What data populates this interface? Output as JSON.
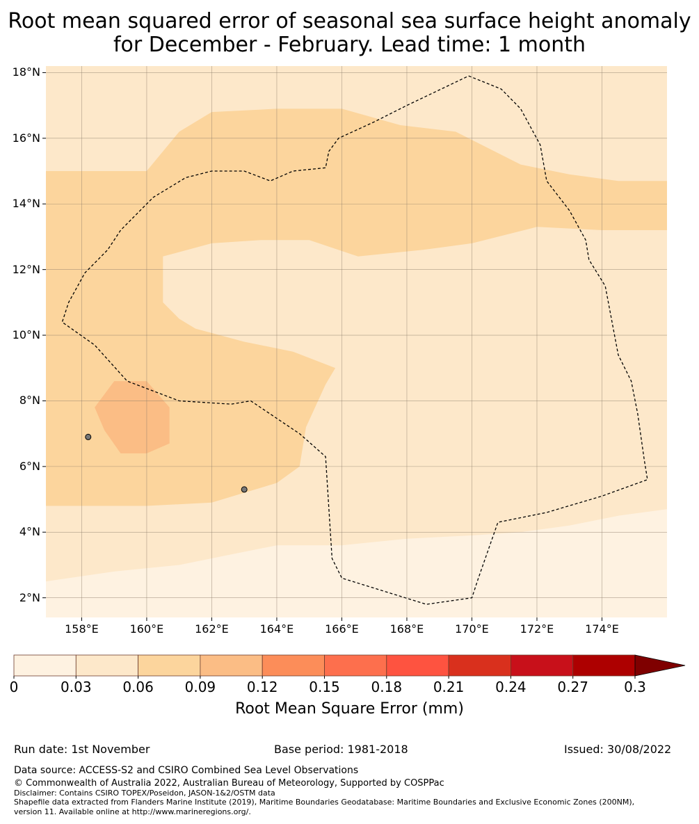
{
  "title": {
    "line1": "Root mean squared error of seasonal sea surface height anomaly",
    "line2": "for December - February. Lead time: 1 month"
  },
  "map": {
    "lat_range": [
      1.4,
      18.2
    ],
    "lon_range": [
      156.9,
      176.0
    ],
    "lat_labels": [
      "2°N",
      "4°N",
      "6°N",
      "8°N",
      "10°N",
      "12°N",
      "14°N",
      "16°N",
      "18°N"
    ],
    "lat_values": [
      2,
      4,
      6,
      8,
      10,
      12,
      14,
      16,
      18
    ],
    "lon_labels": [
      "158°E",
      "160°E",
      "162°E",
      "164°E",
      "166°E",
      "168°E",
      "170°E",
      "172°E",
      "174°E"
    ],
    "lon_values": [
      158,
      160,
      162,
      164,
      166,
      168,
      170,
      172,
      174
    ],
    "gridlines": true,
    "boundary_style": "dashed",
    "eez_boundary": [
      [
        169.9,
        17.9
      ],
      [
        170.9,
        17.5
      ],
      [
        171.5,
        16.9
      ],
      [
        172.1,
        15.8
      ],
      [
        172.3,
        14.7
      ],
      [
        173.0,
        13.8
      ],
      [
        173.5,
        12.9
      ],
      [
        173.6,
        12.3
      ],
      [
        174.1,
        11.5
      ],
      [
        174.5,
        9.4
      ],
      [
        174.9,
        8.6
      ],
      [
        175.1,
        7.6
      ],
      [
        175.3,
        6.2
      ],
      [
        175.4,
        5.6
      ],
      [
        174.0,
        5.1
      ],
      [
        172.3,
        4.6
      ],
      [
        170.8,
        4.3
      ],
      [
        170.2,
        2.6
      ],
      [
        170.0,
        2.0
      ],
      [
        168.6,
        1.8
      ],
      [
        166.0,
        2.6
      ],
      [
        165.7,
        3.2
      ],
      [
        165.5,
        6.3
      ],
      [
        164.7,
        7.0
      ],
      [
        163.2,
        8.0
      ],
      [
        162.6,
        7.9
      ],
      [
        161.0,
        8.0
      ],
      [
        159.4,
        8.6
      ],
      [
        158.4,
        9.7
      ],
      [
        157.4,
        10.4
      ],
      [
        157.6,
        11.0
      ],
      [
        158.1,
        11.9
      ],
      [
        158.8,
        12.6
      ],
      [
        159.2,
        13.2
      ],
      [
        160.2,
        14.2
      ],
      [
        161.2,
        14.8
      ],
      [
        162.0,
        15.0
      ],
      [
        163.0,
        15.0
      ],
      [
        163.8,
        14.7
      ],
      [
        164.5,
        15.0
      ],
      [
        165.5,
        15.1
      ],
      [
        165.6,
        15.6
      ],
      [
        165.9,
        16.0
      ],
      [
        167.0,
        16.5
      ],
      [
        168.0,
        17.0
      ],
      [
        169.9,
        17.9
      ]
    ],
    "fields": [
      {
        "level": "0.03-0.06",
        "color": "#fde8ca",
        "shape": [
          [
            156.9,
            18.2
          ],
          [
            176.0,
            18.2
          ],
          [
            176.0,
            1.4
          ],
          [
            156.9,
            1.4
          ]
        ]
      },
      {
        "level": "0.06-0.09",
        "color": "#fcd59d",
        "shape": [
          [
            156.9,
            15.0
          ],
          [
            160.0,
            15.0
          ],
          [
            161.0,
            16.2
          ],
          [
            162.0,
            16.8
          ],
          [
            164.0,
            16.9
          ],
          [
            166.0,
            16.9
          ],
          [
            167.8,
            16.4
          ],
          [
            169.5,
            16.2
          ],
          [
            171.5,
            15.2
          ],
          [
            173.0,
            14.9
          ],
          [
            174.5,
            14.7
          ],
          [
            176.0,
            14.7
          ],
          [
            176.0,
            13.2
          ],
          [
            174.0,
            13.2
          ],
          [
            172.0,
            13.3
          ],
          [
            170.0,
            12.8
          ],
          [
            168.5,
            12.6
          ],
          [
            166.5,
            12.4
          ],
          [
            165.0,
            12.9
          ],
          [
            163.5,
            12.9
          ],
          [
            162.0,
            12.8
          ],
          [
            160.5,
            12.4
          ],
          [
            160.5,
            11.0
          ],
          [
            161.0,
            10.5
          ],
          [
            161.5,
            10.2
          ],
          [
            163.0,
            9.8
          ],
          [
            164.5,
            9.5
          ],
          [
            165.8,
            9.0
          ],
          [
            165.5,
            8.5
          ],
          [
            164.9,
            7.2
          ],
          [
            164.7,
            6.0
          ],
          [
            164.0,
            5.5
          ],
          [
            163.0,
            5.2
          ],
          [
            162.0,
            4.9
          ],
          [
            160.0,
            4.8
          ],
          [
            158.0,
            4.8
          ],
          [
            156.9,
            4.8
          ]
        ]
      },
      {
        "level": "0.09-0.12",
        "color": "#fbbd85",
        "shape": [
          [
            159.0,
            8.6
          ],
          [
            160.0,
            8.6
          ],
          [
            160.7,
            7.8
          ],
          [
            160.7,
            6.7
          ],
          [
            160.0,
            6.4
          ],
          [
            159.2,
            6.4
          ],
          [
            158.7,
            7.1
          ],
          [
            158.4,
            7.8
          ]
        ]
      },
      {
        "level": "0.00-0.03",
        "color": "#fef2e1",
        "shape": [
          [
            166.0,
            3.6
          ],
          [
            168.0,
            3.8
          ],
          [
            170.0,
            3.9
          ],
          [
            171.5,
            4.0
          ],
          [
            173.0,
            4.2
          ],
          [
            174.5,
            4.5
          ],
          [
            176.0,
            4.7
          ],
          [
            176.0,
            1.4
          ],
          [
            156.9,
            1.4
          ],
          [
            156.9,
            2.5
          ],
          [
            159.0,
            2.8
          ],
          [
            161.0,
            3.0
          ],
          [
            162.5,
            3.3
          ],
          [
            164.0,
            3.6
          ]
        ]
      }
    ],
    "land": [
      [
        158.2,
        6.9
      ],
      [
        163.0,
        5.3
      ]
    ]
  },
  "colorbar": {
    "colors": [
      "#fef2e1",
      "#fde8ca",
      "#fcd59d",
      "#fbbd85",
      "#fc8d59",
      "#fd6f4d",
      "#fe5340",
      "#d9301d",
      "#c8101a",
      "#ad0000"
    ],
    "extend_color": "#7f0000",
    "ticks": [
      "0",
      "0.03",
      "0.06",
      "0.09",
      "0.12",
      "0.15",
      "0.18",
      "0.21",
      "0.24",
      "0.27",
      "0.3"
    ],
    "label": "Root Mean Square Error (mm)"
  },
  "meta": {
    "run_date": "Run date: 1st November",
    "base_period": "Base period: 1981-2018",
    "issued": "Issued: 30/08/2022"
  },
  "footer": {
    "data_source": "Data source: ACCESS-S2 and CSIRO Combined Sea Level Observations",
    "copyright": "© Commonwealth of Australia 2022, Australian Bureau of Meteorology, Supported by COSPPac",
    "disclaimer": "Disclaimer: Contains CSIRO TOPEX/Poseidon, JASON-1&2/OSTM data",
    "shapefile_line1": "Shapefile data extracted from Flanders Marine Institute (2019), Maritime Boundaries Geodatabase: Maritime Boundaries and Exclusive Economic Zones (200NM),",
    "shapefile_line2": "version 11. Available online at http://www.marineregions.org/."
  }
}
